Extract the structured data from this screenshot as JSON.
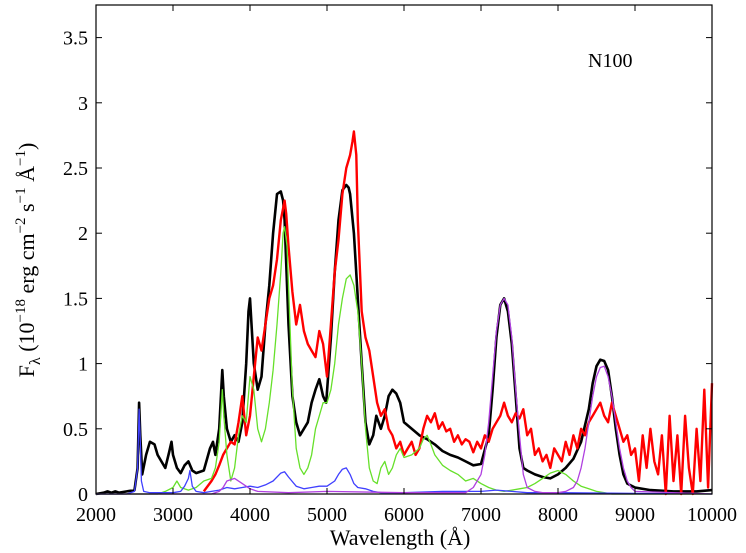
{
  "chart_data": {
    "type": "line",
    "annotation": "N100",
    "xlabel": "Wavelength (Å)",
    "ylabel_parts": {
      "f": "F",
      "lambda": "λ",
      "open": " (10",
      "exp18": "−18",
      "erg": " erg cm",
      "exp2": "−2",
      "s": " s",
      "exp1a": "−1",
      "ang": " Å",
      "exp1b": "−1",
      "close": ")"
    },
    "xlim": [
      2000,
      10000
    ],
    "ylim": [
      0,
      3.75
    ],
    "xticks": [
      2000,
      3000,
      4000,
      5000,
      6000,
      7000,
      8000,
      9000,
      10000
    ],
    "yticks": [
      0,
      0.5,
      1,
      1.5,
      2,
      2.5,
      3,
      3.5
    ],
    "ytick_labels": [
      "0",
      "0.5",
      "1",
      "1.5",
      "2",
      "2.5",
      "3",
      "3.5"
    ],
    "grid": false,
    "series": [
      {
        "color": "#000000",
        "width": 2.6,
        "x": [
          2000,
          2100,
          2150,
          2200,
          2250,
          2300,
          2400,
          2500,
          2540,
          2560,
          2575,
          2600,
          2650,
          2700,
          2760,
          2800,
          2850,
          2900,
          2950,
          2980,
          3000,
          3050,
          3100,
          3150,
          3200,
          3250,
          3300,
          3400,
          3480,
          3520,
          3550,
          3600,
          3640,
          3660,
          3700,
          3750,
          3800,
          3850,
          3900,
          3950,
          3980,
          4000,
          4050,
          4100,
          4150,
          4200,
          4250,
          4300,
          4350,
          4400,
          4430,
          4450,
          4500,
          4550,
          4600,
          4650,
          4700,
          4750,
          4800,
          4850,
          4900,
          4950,
          4990,
          5050,
          5100,
          5150,
          5200,
          5250,
          5280,
          5300,
          5350,
          5400,
          5450,
          5500,
          5550,
          5600,
          5640,
          5700,
          5750,
          5800,
          5850,
          5900,
          5950,
          6000,
          6100,
          6200,
          6300,
          6400,
          6500,
          6600,
          6700,
          6800,
          6900,
          7000,
          7100,
          7150,
          7200,
          7250,
          7300,
          7350,
          7400,
          7450,
          7500,
          7550,
          7600,
          7700,
          7800,
          7900,
          8000,
          8100,
          8200,
          8300,
          8400,
          8450,
          8500,
          8550,
          8600,
          8650,
          8700,
          8750,
          8800,
          8850,
          8900,
          9000,
          9200,
          9500,
          9800,
          10000
        ],
        "y": [
          0,
          0.01,
          0.02,
          0.01,
          0.02,
          0.01,
          0.02,
          0.03,
          0.2,
          0.7,
          0.45,
          0.15,
          0.3,
          0.4,
          0.38,
          0.3,
          0.25,
          0.2,
          0.32,
          0.4,
          0.3,
          0.2,
          0.16,
          0.22,
          0.25,
          0.18,
          0.16,
          0.18,
          0.35,
          0.4,
          0.3,
          0.5,
          0.95,
          0.75,
          0.5,
          0.4,
          0.45,
          0.4,
          0.55,
          1.0,
          1.4,
          1.5,
          1.0,
          0.8,
          0.9,
          1.3,
          1.6,
          2.0,
          2.3,
          2.32,
          2.25,
          2.1,
          1.3,
          0.75,
          0.55,
          0.45,
          0.5,
          0.55,
          0.7,
          0.8,
          0.88,
          0.75,
          0.7,
          1.2,
          1.7,
          2.1,
          2.33,
          2.37,
          2.35,
          2.3,
          2.0,
          1.5,
          1.0,
          0.55,
          0.38,
          0.45,
          0.6,
          0.5,
          0.6,
          0.75,
          0.8,
          0.77,
          0.7,
          0.55,
          0.5,
          0.45,
          0.42,
          0.38,
          0.33,
          0.3,
          0.28,
          0.25,
          0.22,
          0.23,
          0.45,
          0.8,
          1.2,
          1.45,
          1.5,
          1.4,
          1.15,
          0.75,
          0.35,
          0.2,
          0.18,
          0.15,
          0.13,
          0.12,
          0.15,
          0.2,
          0.27,
          0.4,
          0.65,
          0.85,
          0.98,
          1.03,
          1.02,
          0.95,
          0.75,
          0.5,
          0.3,
          0.15,
          0.08,
          0.05,
          0.03,
          0.02,
          0.02,
          0.03
        ]
      },
      {
        "color": "#ff0000",
        "width": 2.4,
        "x": [
          3400,
          3500,
          3550,
          3600,
          3650,
          3700,
          3750,
          3800,
          3850,
          3900,
          3950,
          4000,
          4050,
          4100,
          4150,
          4200,
          4250,
          4300,
          4350,
          4400,
          4450,
          4470,
          4500,
          4550,
          4600,
          4650,
          4700,
          4750,
          4800,
          4850,
          4900,
          4950,
          5000,
          5050,
          5100,
          5150,
          5200,
          5250,
          5300,
          5330,
          5350,
          5380,
          5400,
          5450,
          5500,
          5550,
          5600,
          5650,
          5700,
          5750,
          5800,
          5850,
          5900,
          5950,
          6000,
          6050,
          6100,
          6150,
          6200,
          6250,
          6300,
          6350,
          6400,
          6450,
          6500,
          6550,
          6600,
          6650,
          6700,
          6750,
          6800,
          6850,
          6900,
          6950,
          7000,
          7050,
          7100,
          7150,
          7200,
          7250,
          7300,
          7350,
          7400,
          7450,
          7500,
          7550,
          7600,
          7650,
          7700,
          7750,
          7800,
          7850,
          7900,
          7950,
          8000,
          8050,
          8100,
          8150,
          8200,
          8250,
          8300,
          8350,
          8400,
          8450,
          8500,
          8550,
          8600,
          8650,
          8700,
          8750,
          8800,
          8850,
          8900,
          8950,
          9000,
          9050,
          9100,
          9150,
          9200,
          9250,
          9300,
          9350,
          9400,
          9450,
          9500,
          9550,
          9600,
          9650,
          9700,
          9750,
          9800,
          9850,
          9900,
          9950,
          10000
        ],
        "y": [
          0.02,
          0.1,
          0.15,
          0.22,
          0.3,
          0.35,
          0.4,
          0.38,
          0.55,
          0.75,
          0.45,
          0.6,
          0.9,
          1.2,
          1.1,
          1.3,
          1.5,
          1.6,
          1.8,
          2.1,
          2.25,
          2.15,
          1.9,
          1.55,
          1.3,
          1.45,
          1.25,
          1.15,
          1.1,
          1.05,
          1.25,
          1.15,
          0.9,
          1.3,
          1.7,
          1.95,
          2.3,
          2.5,
          2.6,
          2.7,
          2.78,
          2.6,
          2.1,
          1.4,
          1.2,
          1.1,
          0.9,
          0.7,
          0.6,
          0.65,
          0.5,
          0.45,
          0.35,
          0.4,
          0.3,
          0.35,
          0.4,
          0.3,
          0.35,
          0.5,
          0.6,
          0.55,
          0.62,
          0.5,
          0.55,
          0.48,
          0.5,
          0.4,
          0.45,
          0.38,
          0.42,
          0.4,
          0.32,
          0.4,
          0.35,
          0.45,
          0.4,
          0.5,
          0.55,
          0.6,
          0.7,
          0.6,
          0.55,
          0.62,
          0.58,
          0.65,
          0.45,
          0.5,
          0.3,
          0.35,
          0.25,
          0.3,
          0.2,
          0.35,
          0.3,
          0.25,
          0.4,
          0.3,
          0.45,
          0.35,
          0.5,
          0.45,
          0.55,
          0.6,
          0.65,
          0.7,
          0.6,
          0.55,
          0.7,
          0.6,
          0.5,
          0.4,
          0.45,
          0.3,
          0.35,
          0.1,
          0.45,
          0.2,
          0.5,
          0.25,
          0.15,
          0.45,
          0.0,
          0.6,
          0.1,
          0.45,
          0.0,
          0.6,
          0.2,
          0.0,
          0.5,
          0.1,
          0.8,
          0.05,
          0.85
        ]
      },
      {
        "color": "#66e02a",
        "width": 1.3,
        "x": [
          2000,
          2800,
          2900,
          3000,
          3050,
          3100,
          3200,
          3300,
          3400,
          3500,
          3550,
          3600,
          3640,
          3660,
          3700,
          3750,
          3800,
          3850,
          3900,
          3950,
          4000,
          4050,
          4100,
          4150,
          4200,
          4250,
          4300,
          4350,
          4400,
          4430,
          4450,
          4480,
          4500,
          4550,
          4600,
          4650,
          4700,
          4750,
          4800,
          4850,
          4900,
          4950,
          5000,
          5050,
          5100,
          5150,
          5200,
          5250,
          5300,
          5350,
          5400,
          5450,
          5500,
          5550,
          5600,
          5650,
          5700,
          5750,
          5800,
          5850,
          5900,
          5950,
          6000,
          6100,
          6200,
          6250,
          6300,
          6350,
          6400,
          6500,
          6600,
          6700,
          6800,
          6900,
          7000,
          7100,
          7200,
          7300,
          7400,
          7500,
          7600,
          7700,
          7800,
          7900,
          8000,
          8100,
          8200,
          8300,
          8400,
          8500,
          8600,
          8700,
          8800,
          9000,
          9500,
          10000
        ],
        "y": [
          0,
          0,
          0.02,
          0.05,
          0.1,
          0.05,
          0.03,
          0.05,
          0.1,
          0.12,
          0.2,
          0.4,
          0.8,
          0.6,
          0.3,
          0.1,
          0.2,
          0.45,
          0.6,
          0.55,
          0.9,
          0.8,
          0.5,
          0.4,
          0.5,
          0.7,
          0.95,
          1.3,
          1.7,
          2.0,
          2.05,
          1.9,
          1.6,
          0.8,
          0.35,
          0.2,
          0.15,
          0.2,
          0.3,
          0.5,
          0.6,
          0.7,
          0.7,
          0.8,
          1.0,
          1.3,
          1.5,
          1.65,
          1.68,
          1.6,
          1.4,
          1.0,
          0.5,
          0.2,
          0.1,
          0.08,
          0.2,
          0.25,
          0.15,
          0.2,
          0.3,
          0.35,
          0.28,
          0.3,
          0.35,
          0.42,
          0.45,
          0.38,
          0.3,
          0.22,
          0.18,
          0.15,
          0.1,
          0.12,
          0.08,
          0.05,
          0.03,
          0.02,
          0.03,
          0.04,
          0.05,
          0.08,
          0.12,
          0.16,
          0.18,
          0.15,
          0.1,
          0.06,
          0.04,
          0.02,
          0.01,
          0.0,
          0.0,
          0.0,
          0.0,
          0.0
        ]
      },
      {
        "color": "#4040ff",
        "width": 1.3,
        "x": [
          2000,
          2400,
          2500,
          2540,
          2560,
          2575,
          2590,
          2620,
          2700,
          3000,
          3100,
          3150,
          3200,
          3220,
          3250,
          3300,
          3400,
          3500,
          3600,
          3700,
          3800,
          3900,
          4000,
          4100,
          4200,
          4300,
          4400,
          4450,
          4500,
          4600,
          4700,
          4800,
          4900,
          5000,
          5100,
          5150,
          5200,
          5250,
          5300,
          5350,
          5400,
          5500,
          5600,
          5700,
          6000,
          6500,
          7000,
          7200,
          7400,
          7600,
          8000,
          10000
        ],
        "y": [
          0,
          0.0,
          0.02,
          0.2,
          0.65,
          0.4,
          0.1,
          0.02,
          0.01,
          0.01,
          0.02,
          0.06,
          0.12,
          0.18,
          0.06,
          0.02,
          0.01,
          0.02,
          0.03,
          0.05,
          0.04,
          0.05,
          0.06,
          0.05,
          0.07,
          0.1,
          0.16,
          0.17,
          0.13,
          0.06,
          0.04,
          0.05,
          0.06,
          0.06,
          0.1,
          0.15,
          0.19,
          0.2,
          0.15,
          0.08,
          0.05,
          0.04,
          0.02,
          0.01,
          0.01,
          0.02,
          0.02,
          0.03,
          0.02,
          0.01,
          0.01,
          0.0
        ]
      },
      {
        "color": "#b040e0",
        "width": 1.3,
        "x": [
          2000,
          3500,
          3600,
          3650,
          3700,
          3800,
          3900,
          4000,
          4100,
          4500,
          5000,
          6000,
          6800,
          6900,
          7000,
          7050,
          7100,
          7150,
          7200,
          7250,
          7300,
          7350,
          7400,
          7450,
          7500,
          7550,
          7600,
          7700,
          7800,
          7900,
          8000,
          8100,
          8200,
          8250,
          8300,
          8350,
          8400,
          8450,
          8500,
          8550,
          8600,
          8650,
          8700,
          8750,
          8800,
          8850,
          8900,
          8950,
          9000,
          10000
        ],
        "y": [
          0,
          0,
          0.02,
          0.05,
          0.1,
          0.12,
          0.08,
          0.04,
          0.02,
          0.01,
          0.02,
          0.01,
          0.01,
          0.05,
          0.15,
          0.3,
          0.55,
          0.9,
          1.25,
          1.45,
          1.5,
          1.45,
          1.2,
          0.8,
          0.45,
          0.15,
          0.05,
          0.02,
          0.01,
          0.01,
          0.01,
          0.02,
          0.05,
          0.1,
          0.2,
          0.35,
          0.55,
          0.75,
          0.9,
          0.97,
          0.98,
          0.9,
          0.75,
          0.55,
          0.35,
          0.2,
          0.1,
          0.05,
          0.02,
          0.0
        ]
      }
    ]
  }
}
